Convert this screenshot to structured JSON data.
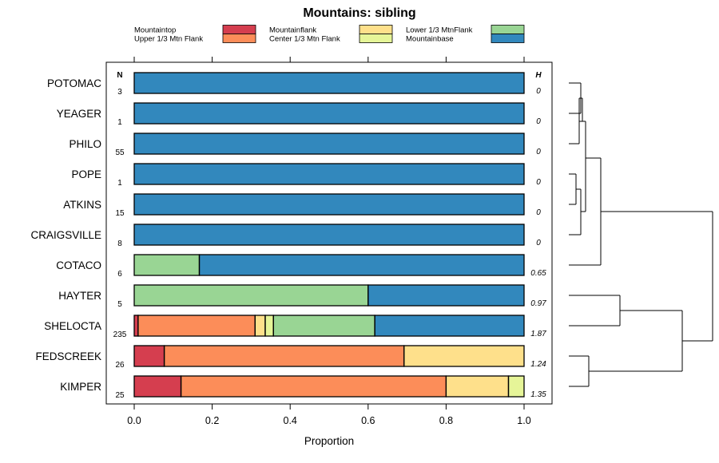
{
  "chart_data": {
    "type": "bar",
    "stacked": "horizontal-proportion",
    "title": "Mountains: sibling",
    "xlabel": "Proportion",
    "xlim": [
      0,
      1
    ],
    "x_ticks": [
      "0.0",
      "0.2",
      "0.4",
      "0.6",
      "0.8",
      "1.0"
    ],
    "x_tick_values": [
      0,
      0.2,
      0.4,
      0.6,
      0.8,
      1.0
    ],
    "n_header": "N",
    "h_header": "H",
    "legend_position": "top",
    "legend": [
      {
        "name": "Mountaintop",
        "color": "#d53e4f"
      },
      {
        "name": "Upper 1/3 Mtn Flank",
        "color": "#fc8d59"
      },
      {
        "name": "Mountainflank",
        "color": "#fee08b"
      },
      {
        "name": "Center 1/3 Mtn Flank",
        "color": "#e6f598"
      },
      {
        "name": "Lower 1/3 MtnFlank",
        "color": "#99d594"
      },
      {
        "name": "Mountainbase",
        "color": "#3288bd"
      }
    ],
    "categories": [
      "POTOMAC",
      "YEAGER",
      "PHILO",
      "POPE",
      "ATKINS",
      "CRAIGSVILLE",
      "COTACO",
      "HAYTER",
      "SHELOCTA",
      "FEDSCREEK",
      "KIMPER"
    ],
    "n": [
      "3",
      "1",
      "55",
      "1",
      "15",
      "8",
      "6",
      "5",
      "235",
      "26",
      "25"
    ],
    "h": [
      "0",
      "0",
      "0",
      "0",
      "0",
      "0",
      "0.65",
      "0.97",
      "1.87",
      "1.24",
      "1.35"
    ],
    "series": [
      {
        "name": "Mountaintop",
        "values": [
          0,
          0,
          0,
          0,
          0,
          0,
          0,
          0,
          0.01,
          0.077,
          0.12
        ]
      },
      {
        "name": "Upper 1/3 Mtn Flank",
        "values": [
          0,
          0,
          0,
          0,
          0,
          0,
          0,
          0,
          0.3,
          0.615,
          0.68
        ]
      },
      {
        "name": "Mountainflank",
        "values": [
          0,
          0,
          0,
          0,
          0,
          0,
          0,
          0,
          0.026,
          0.308,
          0.16
        ]
      },
      {
        "name": "Center 1/3 Mtn Flank",
        "values": [
          0,
          0,
          0,
          0,
          0,
          0,
          0,
          0,
          0.021,
          0,
          0.04
        ]
      },
      {
        "name": "Lower 1/3 MtnFlank",
        "values": [
          0,
          0,
          0,
          0,
          0,
          0,
          0.167,
          0.6,
          0.26,
          0,
          0
        ]
      },
      {
        "name": "Mountainbase",
        "values": [
          1,
          1,
          1,
          1,
          1,
          1,
          0.833,
          0.4,
          0.383,
          0,
          0
        ]
      }
    ],
    "dendrogram": "hierarchical clustering of the 11 rows, drawn to the right of the panel"
  }
}
